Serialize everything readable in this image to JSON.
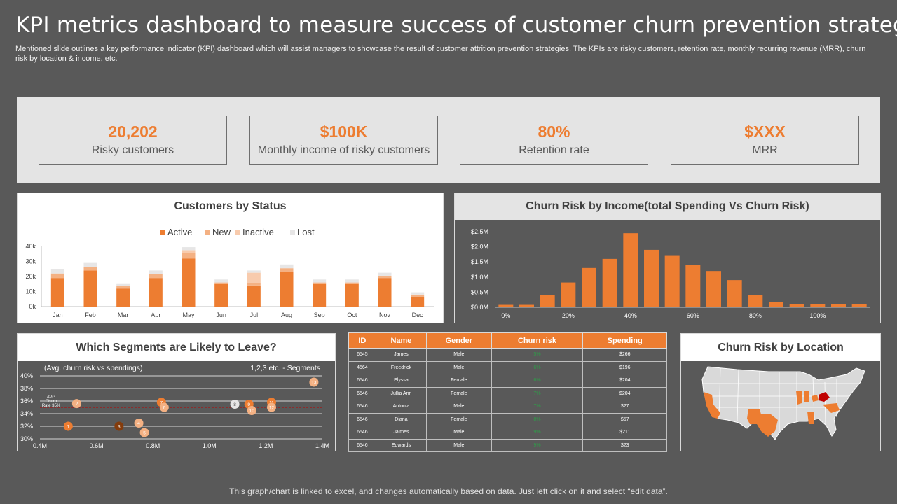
{
  "header": {
    "title": "KPI metrics dashboard to measure success of customer churn prevention strategies",
    "subtitle": "Mentioned slide outlines a key performance indicator (KPI) dashboard which will assist managers to showcase the result of customer attrition prevention strategies. The KPIs are risky customers, retention rate, monthly recurring revenue (MRR), churn risk by location & income, etc."
  },
  "kpis": [
    {
      "value": "20,202",
      "label": "Risky customers"
    },
    {
      "value": "$100K",
      "label": "Monthly  income of risky customers"
    },
    {
      "value": "80%",
      "label": "Retention rate"
    },
    {
      "value": "$XXX",
      "label": "MRR"
    }
  ],
  "colors": {
    "accent": "#ed7d31",
    "new": "#f4b183",
    "inactive": "#f8cbad",
    "lost": "#e7e6e6",
    "bg": "#595959",
    "dark": "#843c0c"
  },
  "status_panel": {
    "title": "Customers by Status"
  },
  "income_panel": {
    "title": "Churn Risk by Income(total  Spending Vs Churn Risk)"
  },
  "segments_panel": {
    "title": "Which Segments are Likely to Leave?",
    "left_note": "(Avg. churn risk vs spendings)",
    "right_note": "1,2,3 etc. - Segments",
    "avg_label": "AVG Churn Rate 35%"
  },
  "location_panel": {
    "title": "Churn Risk by Location"
  },
  "table": {
    "headers": [
      "ID",
      "Name",
      "Gender",
      "Churn risk",
      "Spending"
    ],
    "rows": [
      [
        "6545",
        "James",
        "Male",
        "5%",
        "$266"
      ],
      [
        "4564",
        "Freedrick",
        "Male",
        "6%",
        "$196"
      ],
      [
        "6546",
        "Elyssa",
        "Female",
        "6%",
        "$204"
      ],
      [
        "6546",
        "Jullia Ann",
        "Female",
        "7%",
        "$204"
      ],
      [
        "6546",
        "Antonia",
        "Male",
        "7%",
        "$27"
      ],
      [
        "6546",
        "Diana",
        "Female",
        "8%",
        "$57"
      ],
      [
        "6546",
        "Jaimes",
        "Male",
        "9%",
        "$211"
      ],
      [
        "6546",
        "Edwards",
        "Male",
        "9%",
        "$23"
      ]
    ]
  },
  "footer": "This graph/chart is linked to excel,  and changes automatically based on data. Just left click on it and select “edit data”.",
  "chart_data": [
    {
      "type": "bar",
      "stacked": true,
      "title": "Customers by Status",
      "categories": [
        "Jan",
        "Feb",
        "Mar",
        "Apr",
        "May",
        "Jun",
        "Jul",
        "Aug",
        "Sep",
        "Oct",
        "Nov",
        "Dec"
      ],
      "series": [
        {
          "name": "Active",
          "values": [
            19000,
            24000,
            12000,
            19000,
            32000,
            15000,
            14000,
            23000,
            15000,
            15000,
            19000,
            6500
          ]
        },
        {
          "name": "New",
          "values": [
            3000,
            2500,
            1500,
            2500,
            3500,
            1000,
            1500,
            2500,
            1000,
            1000,
            1500,
            1000
          ]
        },
        {
          "name": "Inactive",
          "values": [
            0,
            0,
            0,
            0,
            2000,
            0,
            7000,
            0,
            0,
            0,
            0,
            500
          ]
        },
        {
          "name": "Lost",
          "values": [
            3000,
            2500,
            1500,
            2500,
            2000,
            2000,
            1500,
            2500,
            2000,
            2000,
            2000,
            1500
          ]
        }
      ],
      "yticks": [
        "0k",
        "10k",
        "20k",
        "30k",
        "40k"
      ],
      "ylim": [
        0,
        40000
      ],
      "legend": "top"
    },
    {
      "type": "bar",
      "title": "Churn Risk by Income(total  Spending Vs Churn Risk)",
      "values": [
        0.08,
        0.08,
        0.4,
        0.82,
        1.3,
        1.6,
        2.45,
        1.9,
        1.7,
        1.4,
        1.2,
        0.9,
        0.4,
        0.18,
        0.1,
        0.1,
        0.1,
        0.1
      ],
      "ylim": [
        0,
        2.5
      ],
      "yticks": [
        "$0.0M",
        "$0.5M",
        "$1.0M",
        "$1.5M",
        "$2.0M",
        "$2.5M"
      ],
      "xticks": [
        "0%",
        "20%",
        "40%",
        "60%",
        "80%",
        "100%"
      ]
    },
    {
      "type": "scatter",
      "title": "Which Segments are Likely to Leave?",
      "xlim": [
        0.4,
        1.4
      ],
      "ylim": [
        30,
        40
      ],
      "xticks": [
        "0.4M",
        "0.6M",
        "0.8M",
        "1.0M",
        "1.2M",
        "1.4M"
      ],
      "yticks": [
        "30%",
        "32%",
        "34%",
        "36%",
        "38%",
        "40%"
      ],
      "avg": 35,
      "points": [
        {
          "label": "1",
          "x": 0.5,
          "y": 32.0,
          "tone": "accent"
        },
        {
          "label": "2",
          "x": 0.53,
          "y": 35.6,
          "tone": "new"
        },
        {
          "label": "3",
          "x": 0.68,
          "y": 32.0,
          "tone": "dark"
        },
        {
          "label": "4",
          "x": 0.75,
          "y": 32.5,
          "tone": "new"
        },
        {
          "label": "5",
          "x": 0.77,
          "y": 31.0,
          "tone": "new"
        },
        {
          "label": "7",
          "x": 0.83,
          "y": 35.8,
          "tone": "accent"
        },
        {
          "label": "6",
          "x": 0.84,
          "y": 35.0,
          "tone": "new"
        },
        {
          "label": "8",
          "x": 1.09,
          "y": 35.5,
          "tone": "lost"
        },
        {
          "label": "9",
          "x": 1.14,
          "y": 35.5,
          "tone": "accent"
        },
        {
          "label": "10",
          "x": 1.15,
          "y": 34.5,
          "tone": "new"
        },
        {
          "label": "11",
          "x": 1.22,
          "y": 35.8,
          "tone": "accent"
        },
        {
          "label": "12",
          "x": 1.22,
          "y": 35.0,
          "tone": "new"
        },
        {
          "label": "13",
          "x": 1.37,
          "y": 39.0,
          "tone": "new"
        }
      ]
    }
  ]
}
